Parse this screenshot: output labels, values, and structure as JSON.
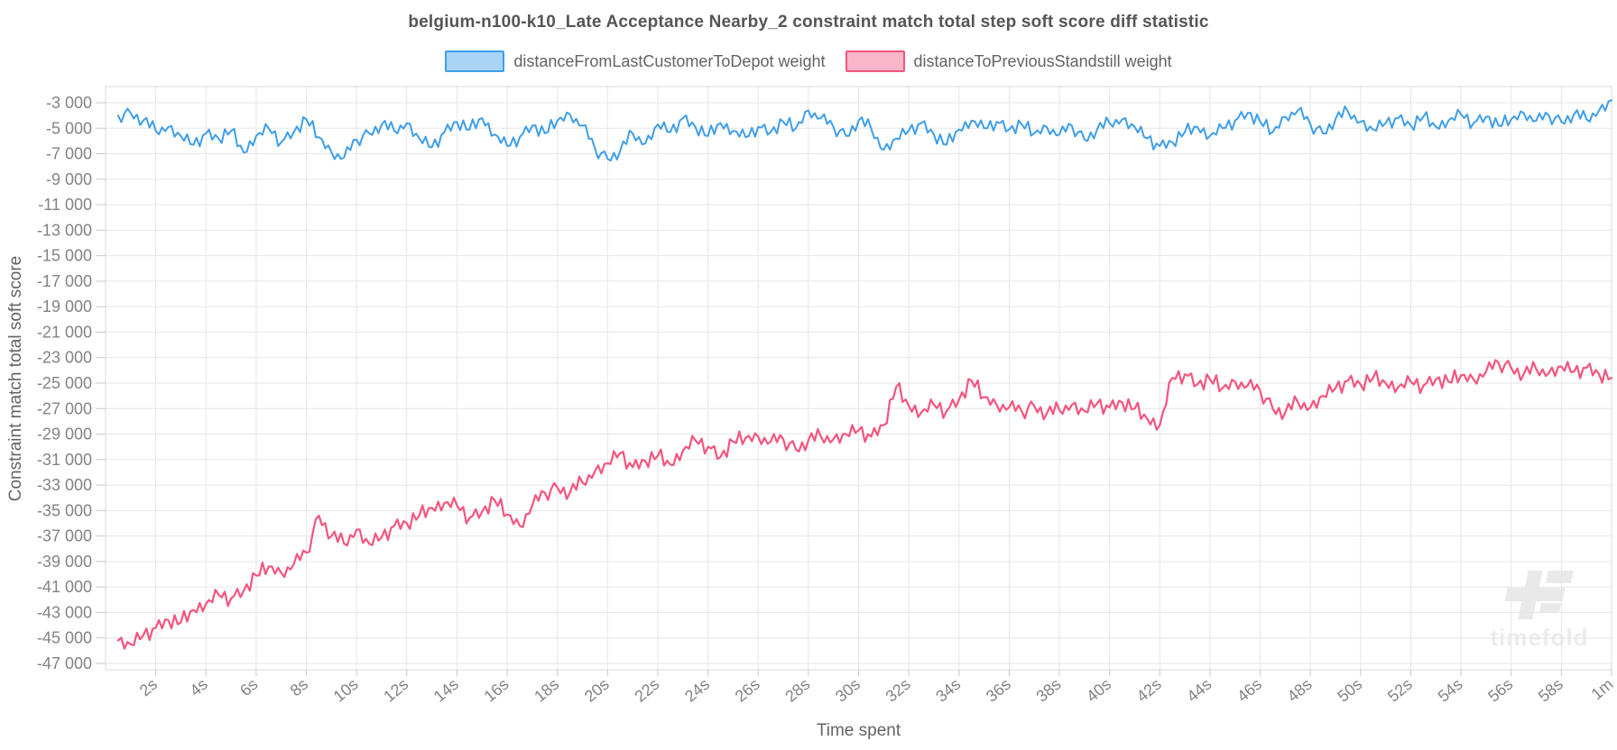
{
  "chart_data": {
    "type": "line",
    "title": "belgium-n100-k10_Late Acceptance Nearby_2 constraint match total step soft score diff statistic",
    "xlabel": "Time spent",
    "ylabel": "Constraint match total soft score",
    "legend_position": "top",
    "grid": true,
    "xlim_seconds": [
      0,
      60
    ],
    "ylim": [
      -47500,
      -1700
    ],
    "x_tick_seconds": [
      2,
      4,
      6,
      8,
      10,
      12,
      14,
      16,
      18,
      20,
      22,
      24,
      26,
      28,
      30,
      32,
      34,
      36,
      38,
      40,
      42,
      44,
      46,
      48,
      50,
      52,
      54,
      56,
      58,
      60
    ],
    "x_tick_labels": [
      "2s",
      "4s",
      "6s",
      "8s",
      "10s",
      "12s",
      "14s",
      "16s",
      "18s",
      "20s",
      "22s",
      "24s",
      "26s",
      "28s",
      "30s",
      "32s",
      "34s",
      "36s",
      "38s",
      "40s",
      "42s",
      "44s",
      "46s",
      "48s",
      "50s",
      "52s",
      "54s",
      "56s",
      "58s",
      "1m"
    ],
    "y_tick_values": [
      -3000,
      -5000,
      -7000,
      -9000,
      -11000,
      -13000,
      -15000,
      -17000,
      -19000,
      -21000,
      -23000,
      -25000,
      -27000,
      -29000,
      -31000,
      -33000,
      -35000,
      -37000,
      -39000,
      -41000,
      -43000,
      -45000,
      -47000
    ],
    "y_tick_labels": [
      "-3 000",
      "-5 000",
      "-7 000",
      "-9 000",
      "-11 000",
      "-13 000",
      "-15 000",
      "-17 000",
      "-19 000",
      "-21 000",
      "-23 000",
      "-25 000",
      "-27 000",
      "-29 000",
      "-31 000",
      "-33 000",
      "-35 000",
      "-37 000",
      "-39 000",
      "-41 000",
      "-43 000",
      "-45 000",
      "-47 000"
    ],
    "noise_offsets": [
      0.42,
      -0.7,
      0.15,
      -0.35,
      0.8,
      -0.2,
      0.55,
      -0.95,
      0.1,
      0.65,
      -0.5,
      0.3,
      -0.85,
      0.7,
      -0.25,
      0.95,
      -0.6,
      0.2,
      -0.45
    ],
    "noise_subdivisions": 4,
    "series": [
      {
        "name": "distanceFromLastCustomerToDepot weight",
        "line_color": "#3f9ee9",
        "legend_fill": "#a9d4f6",
        "stroke_width": 2,
        "noise_amplitude": 600,
        "noise_phase": 7,
        "x_start_seconds": 0.5,
        "x_step_seconds": 0.5,
        "values": [
          -4000,
          -3800,
          -4400,
          -5200,
          -4900,
          -5600,
          -6300,
          -5400,
          -5800,
          -5200,
          -6900,
          -5600,
          -5000,
          -6100,
          -5300,
          -4300,
          -5700,
          -6900,
          -7300,
          -5900,
          -5400,
          -4700,
          -5200,
          -4600,
          -5800,
          -6500,
          -5300,
          -4500,
          -5100,
          -4200,
          -5500,
          -6400,
          -5700,
          -4800,
          -5400,
          -4400,
          -3900,
          -4800,
          -6600,
          -7400,
          -6800,
          -5400,
          -6200,
          -4700,
          -5300,
          -4200,
          -4900,
          -5600,
          -4600,
          -5200,
          -5700,
          -4900,
          -5300,
          -4500,
          -5000,
          -3600,
          -4200,
          -4900,
          -5600,
          -4400,
          -5000,
          -6700,
          -5800,
          -5200,
          -4600,
          -5500,
          -6300,
          -5100,
          -4400,
          -5000,
          -4500,
          -5100,
          -4700,
          -5400,
          -4900,
          -5500,
          -4800,
          -5900,
          -5100,
          -4600,
          -4300,
          -4900,
          -5800,
          -6400,
          -6100,
          -5300,
          -4900,
          -5600,
          -5000,
          -4400,
          -3800,
          -4500,
          -5300,
          -4100,
          -3600,
          -4700,
          -5400,
          -4300,
          -3700,
          -4500,
          -5100,
          -4600,
          -4200,
          -4800,
          -4100,
          -4900,
          -4400,
          -3900,
          -4600,
          -4100,
          -4800,
          -4300,
          -3800,
          -4400,
          -4000,
          -4500,
          -3900,
          -4300,
          -3600,
          -2800
        ]
      },
      {
        "name": "distanceToPreviousStandstill weight",
        "line_color": "#f4557e",
        "legend_fill": "#f9b7c9",
        "stroke_width": 2.2,
        "noise_amplitude": 700,
        "noise_phase": 0,
        "x_start_seconds": 0.5,
        "x_step_seconds": 0.5,
        "values": [
          -45200,
          -45500,
          -44800,
          -44200,
          -43600,
          -43800,
          -42800,
          -42300,
          -41600,
          -41900,
          -41300,
          -40100,
          -39400,
          -39900,
          -39200,
          -38300,
          -35400,
          -37000,
          -37600,
          -36500,
          -37600,
          -37100,
          -36200,
          -36000,
          -35400,
          -34800,
          -34400,
          -34600,
          -35600,
          -35100,
          -34200,
          -35300,
          -36200,
          -34600,
          -33600,
          -33200,
          -33600,
          -32800,
          -31900,
          -31300,
          -30500,
          -31600,
          -31100,
          -30700,
          -31400,
          -30300,
          -29500,
          -30000,
          -30800,
          -29600,
          -29300,
          -29200,
          -29600,
          -29400,
          -30200,
          -29500,
          -29200,
          -29400,
          -29000,
          -28700,
          -29200,
          -28300,
          -25300,
          -26800,
          -27300,
          -26700,
          -27200,
          -26300,
          -24800,
          -26100,
          -26700,
          -26900,
          -27200,
          -26800,
          -27400,
          -27100,
          -26700,
          -27200,
          -26600,
          -26900,
          -26500,
          -27000,
          -27800,
          -28300,
          -24600,
          -24300,
          -25100,
          -24700,
          -25400,
          -24900,
          -25200,
          -25600,
          -27000,
          -27300,
          -26500,
          -26900,
          -26000,
          -25400,
          -24800,
          -25100,
          -24600,
          -25000,
          -25300,
          -24900,
          -25200,
          -24700,
          -24900,
          -24400,
          -24700,
          -24100,
          -23400,
          -23800,
          -24300,
          -23900,
          -24200,
          -23700,
          -24100,
          -23800,
          -24300,
          -24600
        ]
      }
    ]
  },
  "watermark": {
    "text": "timefold",
    "color": "#e9e9e9",
    "text_color": "#ececec"
  },
  "colors": {
    "grid": "#e6e6e6",
    "plot_border": "#d9d9d9",
    "tick_mark": "#c9c9c9",
    "tick_text": "#838383",
    "title_text": "#555555",
    "axis_title_text": "#636363",
    "legend_text": "#636363"
  }
}
